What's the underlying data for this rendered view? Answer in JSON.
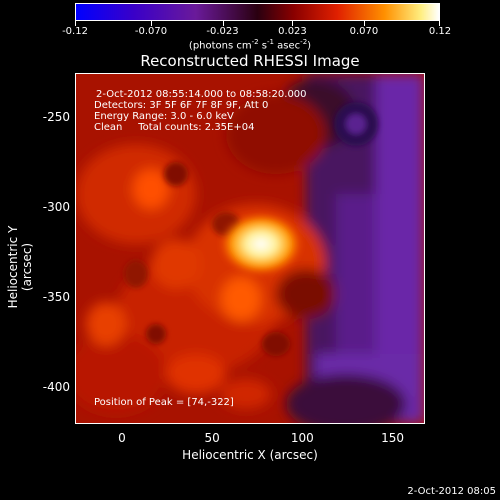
{
  "colorbar": {
    "tick_labels": [
      "-0.12",
      "-0.070",
      "-0.023",
      "0.023",
      "0.070",
      "0.12"
    ],
    "tick_values": [
      -0.12,
      -0.07,
      -0.023,
      0.023,
      0.07,
      0.12
    ],
    "range": [
      -0.12,
      0.12
    ],
    "units_text": "(photons cm",
    "units_sup1": "-2",
    "units_mid": " s",
    "units_sup2": "-1",
    "units_mid2": " asec",
    "units_sup3": "-2",
    "units_end": ")"
  },
  "title": "Reconstructed RHESSI Image",
  "annotations": {
    "time": "2-Oct-2012 08:55:14.000 to 08:58:20.000",
    "detectors": "Detectors: 3F 5F 6F 7F 8F 9F, Att 0",
    "energy": "Energy Range: 3.0 - 6.0 keV",
    "method": "Clean     Total counts: 2.35E+04",
    "peak": "Position of Peak = [74,-322]"
  },
  "axes": {
    "x_label": "Heliocentric X (arcsec)",
    "y_label": "Heliocentric Y (arcsec)",
    "x_ticks": [
      "0",
      "50",
      "100",
      "150"
    ],
    "y_ticks": [
      "-250",
      "-300",
      "-350",
      "-400"
    ],
    "x_range": [
      -26,
      168
    ],
    "y_range": [
      -420,
      -225
    ]
  },
  "peak_position": [
    74,
    -322
  ],
  "timestamp": "2-Oct-2012 08:05"
}
